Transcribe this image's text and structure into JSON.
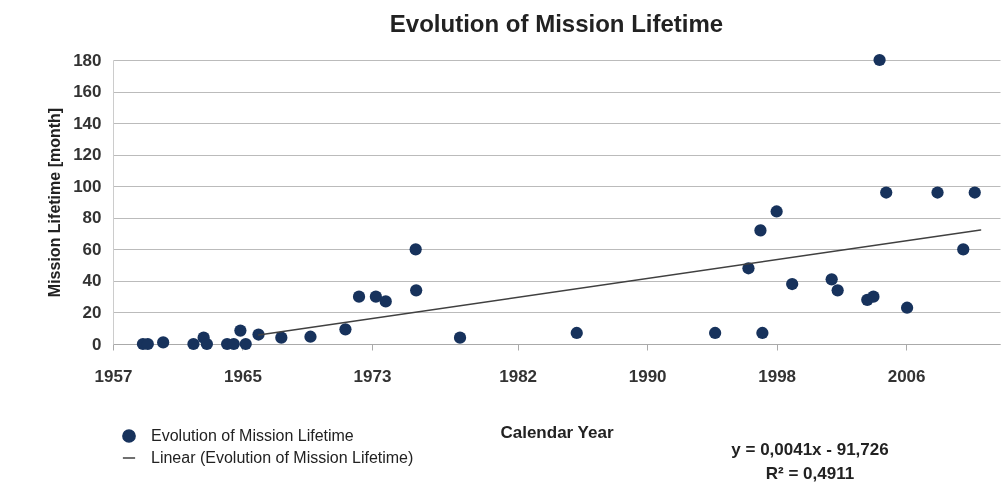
{
  "chart_data": {
    "type": "scatter",
    "title": "Evolution of Mission Lifetime",
    "xlabel": "Calendar Year",
    "ylabel": "Mission Lifetime [month]",
    "xlim": [
      1957,
      2011.8
    ],
    "xticks": [
      1957,
      1965,
      1973,
      1982,
      1990,
      1998,
      2006
    ],
    "ylim": [
      0,
      180
    ],
    "yticks": [
      0,
      20,
      40,
      60,
      80,
      100,
      120,
      140,
      160,
      180
    ],
    "grid": "y",
    "legend": "bottom left",
    "series": [
      {
        "name": "Evolution of Mission Lifetime",
        "marker": "circle",
        "color": "#17325c",
        "x": [
          1958.85,
          1959.15,
          1960.1,
          1961.97,
          1962.6,
          1962.8,
          1964.05,
          1964.46,
          1964.87,
          1965.2,
          1965.99,
          1967.4,
          1969.2,
          1971.36,
          1972.2,
          1973.24,
          1973.85,
          1975.7,
          1975.73,
          1978.44,
          1985.65,
          1994.2,
          1997.12,
          1996.26,
          1997.0,
          1998.0,
          1998.96,
          2001.4,
          2001.77,
          2003.6,
          2003.98,
          2004.36,
          2004.77,
          2006.06,
          2007.94,
          2009.53,
          2010.24
        ],
        "values": [
          0,
          0,
          1,
          0,
          4,
          0,
          0,
          0,
          8.5,
          0,
          6,
          4,
          4.6,
          9.3,
          30,
          30,
          27,
          60,
          34,
          4,
          7,
          7,
          7,
          48,
          72,
          84,
          38,
          41,
          34,
          28,
          30,
          180,
          96,
          23,
          96,
          60,
          96
        ]
      },
      {
        "name": "Linear (Evolution of Mission Lifetime)",
        "type": "line",
        "color": "#404040",
        "x": [
          1966.0,
          2010.6
        ],
        "values": [
          5.7,
          72.3
        ]
      }
    ],
    "annotations": [
      "y = 0,0041x - 91,726",
      "R² = 0,4911"
    ]
  }
}
